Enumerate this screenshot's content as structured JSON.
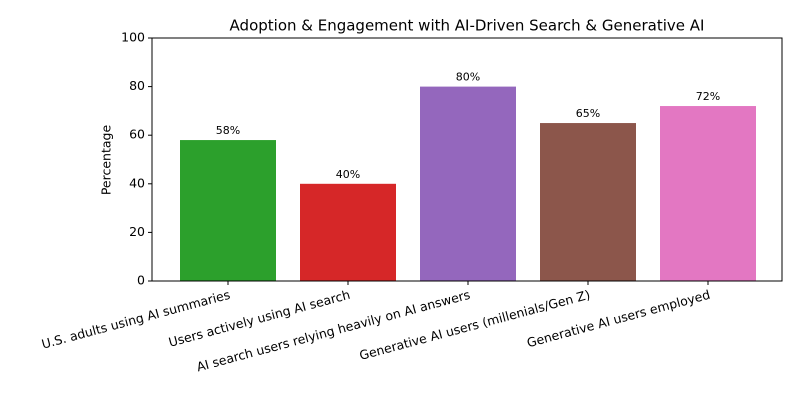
{
  "chart_data": {
    "type": "bar",
    "title": "Adoption & Engagement with AI-Driven Search & Generative AI",
    "y_label": "Percentage",
    "categories": [
      "U.S. adults using AI summaries",
      "Users actively using AI search",
      "AI search users relying heavily on AI answers",
      "Generative AI users (millenials/Gen Z)",
      "Generative AI users employed"
    ],
    "values": [
      58,
      40,
      80,
      65,
      72
    ],
    "value_labels": [
      "58%",
      "40%",
      "80%",
      "65%",
      "72%"
    ],
    "colors": [
      "#2ca02c",
      "#d62728",
      "#9467bd",
      "#8c564b",
      "#e377c2"
    ],
    "ylim": [
      0,
      100
    ],
    "yticks": [
      0,
      20,
      40,
      60,
      80,
      100
    ],
    "grid": false
  }
}
